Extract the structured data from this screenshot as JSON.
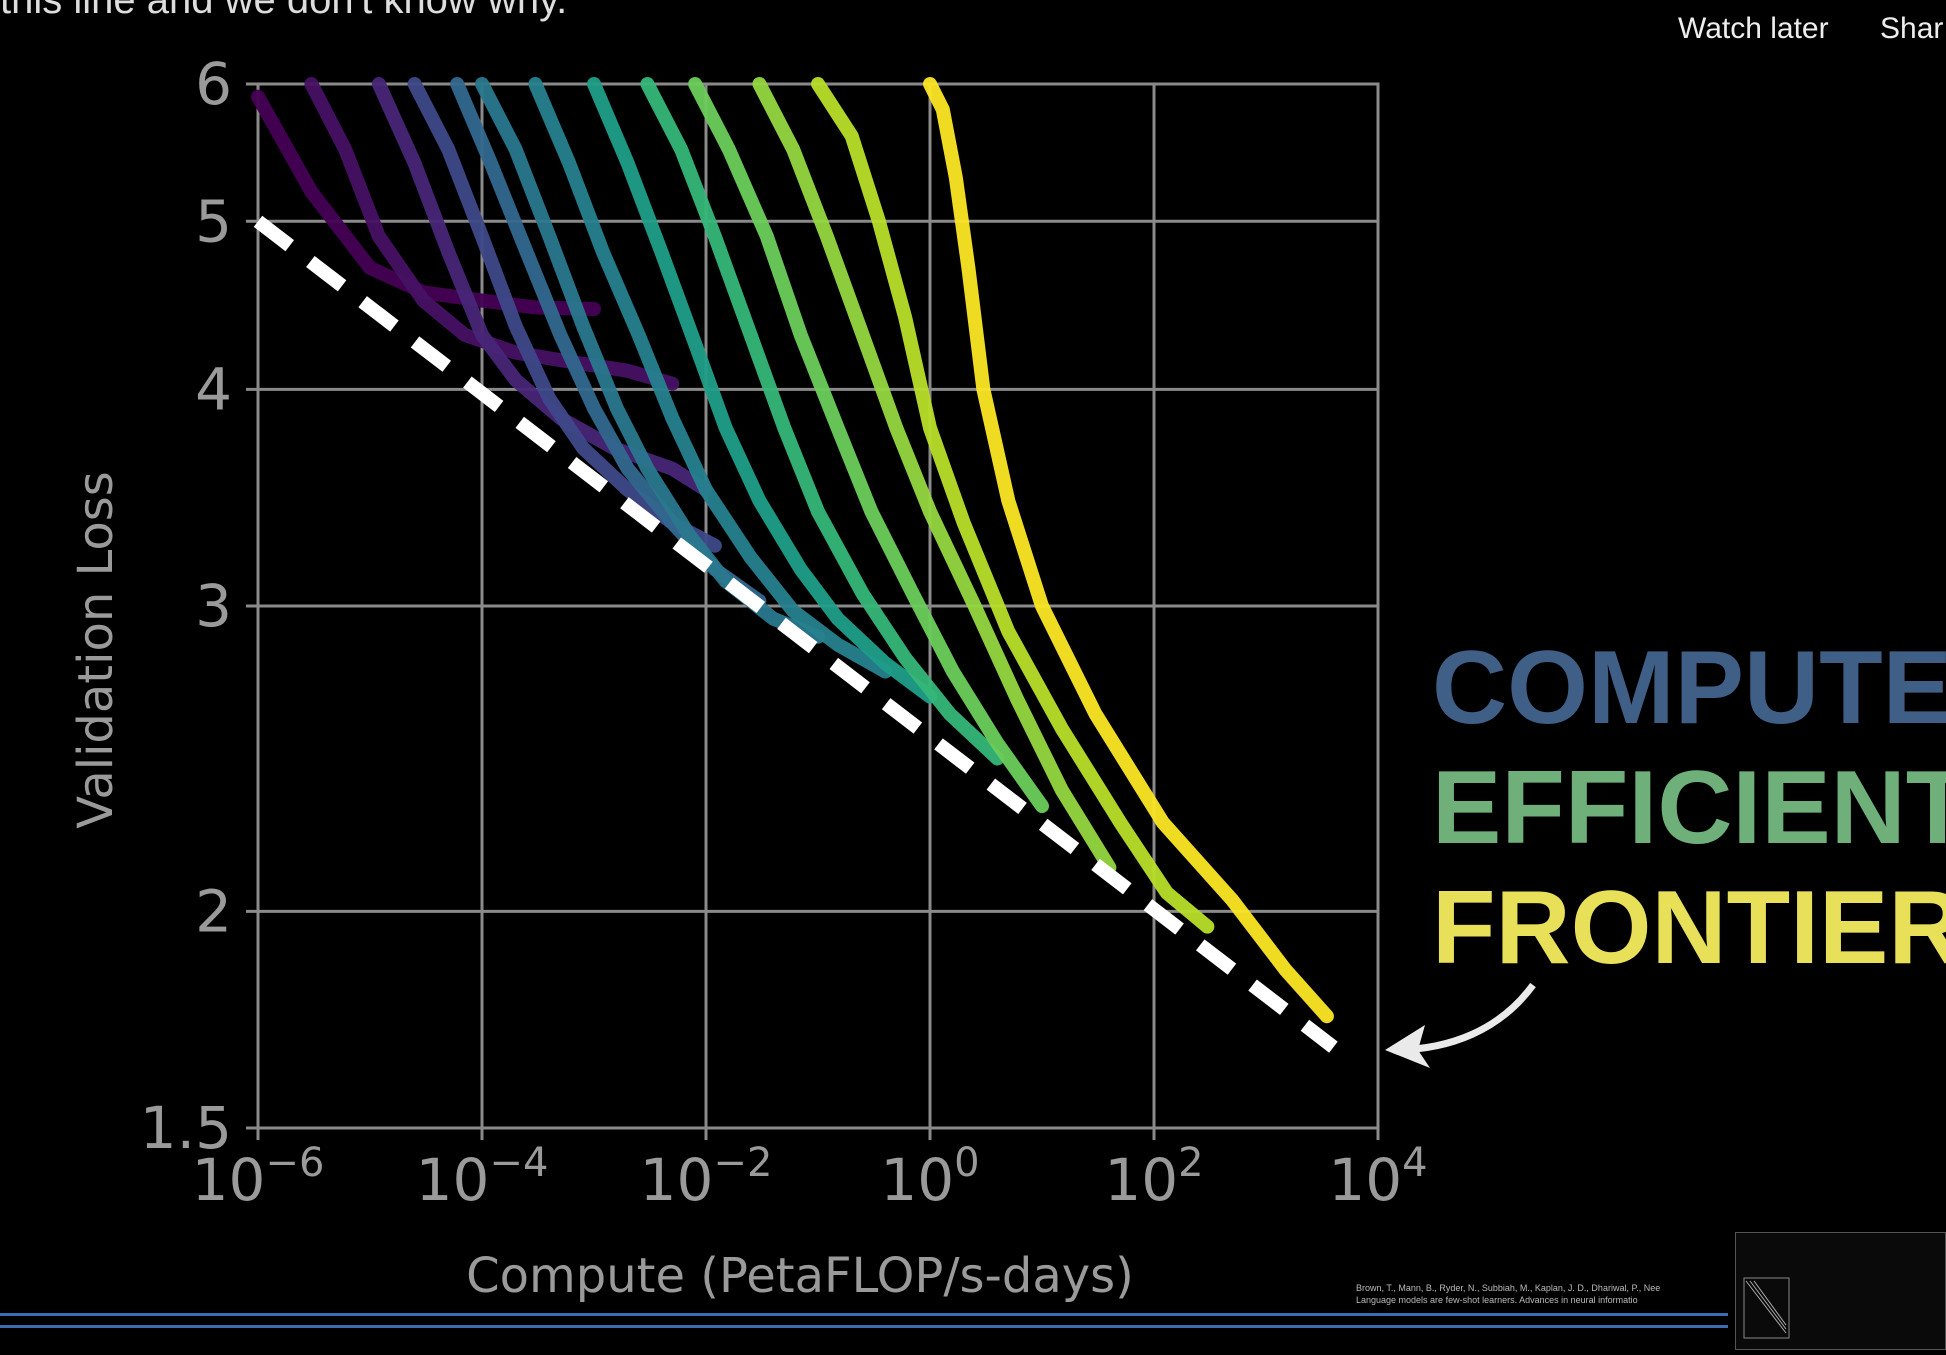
{
  "video": {
    "caption_text": "this line and we don't know why.",
    "watch_later_label": "Watch later",
    "share_label": "Shar"
  },
  "annotation": {
    "line1": "COMPUTE",
    "line2": "EFFICIENT",
    "line3": "FRONTIER",
    "colors": {
      "line1": "#3f5f86",
      "line2": "#6fb07a",
      "line3": "#e9e05a"
    }
  },
  "citation": {
    "line1": "Brown, T., Mann, B., Ryder, N., Subbiah, M., Kaplan, J. D., Dhariwal, P., Nee",
    "line2": "Language models are few-shot learners. Advances in neural informatio"
  },
  "chart_data": {
    "type": "line",
    "xlabel": "Compute (PetaFLOP/s-days)",
    "ylabel": "Validation Loss",
    "x_scale": "log",
    "y_scale": "log",
    "xlim": [
      1e-06,
      10000
    ],
    "ylim": [
      1.5,
      6
    ],
    "x_ticks": [
      {
        "base": "10",
        "exp": "−6",
        "value": 1e-06
      },
      {
        "base": "10",
        "exp": "−4",
        "value": 0.0001
      },
      {
        "base": "10",
        "exp": "−2",
        "value": 0.01
      },
      {
        "base": "10",
        "exp": "0",
        "value": 1
      },
      {
        "base": "10",
        "exp": "2",
        "value": 100
      },
      {
        "base": "10",
        "exp": "4",
        "value": 10000
      }
    ],
    "y_ticks": [
      {
        "label": "1.5",
        "value": 1.5
      },
      {
        "label": "2",
        "value": 2
      },
      {
        "label": "3",
        "value": 3
      },
      {
        "label": "4",
        "value": 4
      },
      {
        "label": "5",
        "value": 5
      },
      {
        "label": "6",
        "value": 6
      }
    ],
    "grid": true,
    "frontier": {
      "x": [
        1e-06,
        4000
      ],
      "y": [
        5.0,
        1.67
      ],
      "color": "#ffffff",
      "style": "dashed"
    },
    "series": [
      {
        "color": "#440154",
        "x": [
          1e-06,
          3e-06,
          1e-05,
          3e-05,
          0.0001,
          0.0003,
          0.001
        ],
        "y": [
          5.9,
          5.2,
          4.7,
          4.55,
          4.5,
          4.46,
          4.45
        ]
      },
      {
        "color": "#471164",
        "x": [
          3e-06,
          6e-06,
          1.2e-05,
          3e-05,
          7e-05,
          0.0002,
          0.0006,
          0.002,
          0.005
        ],
        "y": [
          6.0,
          5.5,
          4.9,
          4.5,
          4.3,
          4.2,
          4.15,
          4.1,
          4.03
        ]
      },
      {
        "color": "#482677",
        "x": [
          1.2e-05,
          2.5e-05,
          5e-05,
          0.0001,
          0.0002,
          0.0005,
          0.0015,
          0.005,
          0.01
        ],
        "y": [
          6.0,
          5.4,
          4.8,
          4.3,
          4.05,
          3.85,
          3.7,
          3.6,
          3.5
        ]
      },
      {
        "color": "#3e4989",
        "x": [
          2.5e-05,
          5e-05,
          0.0001,
          0.0002,
          0.0004,
          0.0008,
          0.002,
          0.005,
          0.012
        ],
        "y": [
          6.0,
          5.5,
          4.9,
          4.35,
          3.95,
          3.7,
          3.5,
          3.35,
          3.25
        ]
      },
      {
        "color": "#31688e",
        "x": [
          6e-05,
          0.00012,
          0.00025,
          0.0005,
          0.001,
          0.002,
          0.005,
          0.012,
          0.03
        ],
        "y": [
          6.0,
          5.4,
          4.8,
          4.3,
          3.9,
          3.6,
          3.35,
          3.15,
          3.02
        ]
      },
      {
        "color": "#2a788e",
        "x": [
          0.0001,
          0.0002,
          0.0004,
          0.0008,
          0.0016,
          0.003,
          0.007,
          0.015,
          0.04,
          0.1
        ],
        "y": [
          6.0,
          5.5,
          4.9,
          4.35,
          3.9,
          3.6,
          3.3,
          3.1,
          2.95,
          2.88
        ]
      },
      {
        "color": "#26828e",
        "x": [
          0.0003,
          0.0006,
          0.0012,
          0.0025,
          0.005,
          0.01,
          0.025,
          0.06,
          0.15,
          0.4
        ],
        "y": [
          6.0,
          5.4,
          4.8,
          4.3,
          3.85,
          3.5,
          3.2,
          2.98,
          2.85,
          2.75
        ]
      },
      {
        "color": "#1f9e89",
        "x": [
          0.001,
          0.002,
          0.004,
          0.008,
          0.015,
          0.03,
          0.07,
          0.15,
          0.4,
          1.0
        ],
        "y": [
          6.0,
          5.4,
          4.8,
          4.25,
          3.8,
          3.45,
          3.15,
          2.95,
          2.78,
          2.66
        ]
      },
      {
        "color": "#35b779",
        "x": [
          0.003,
          0.006,
          0.012,
          0.025,
          0.05,
          0.1,
          0.25,
          0.6,
          1.5,
          4.0
        ],
        "y": [
          6.0,
          5.5,
          4.9,
          4.3,
          3.8,
          3.4,
          3.05,
          2.8,
          2.6,
          2.45
        ]
      },
      {
        "color": "#6ccd5a",
        "x": [
          0.008,
          0.016,
          0.035,
          0.07,
          0.15,
          0.3,
          0.7,
          1.6,
          4.0,
          10.0
        ],
        "y": [
          6.0,
          5.5,
          4.9,
          4.3,
          3.8,
          3.4,
          3.05,
          2.75,
          2.5,
          2.3
        ]
      },
      {
        "color": "#95d840",
        "x": [
          0.03,
          0.06,
          0.12,
          0.25,
          0.5,
          1.0,
          2.5,
          6.0,
          15.0,
          40.0
        ],
        "y": [
          6.0,
          5.5,
          4.9,
          4.3,
          3.8,
          3.4,
          3.0,
          2.65,
          2.35,
          2.12
        ]
      },
      {
        "color": "#b8de29",
        "x": [
          0.1,
          0.2,
          0.35,
          0.6,
          1.0,
          2.0,
          5.0,
          15.0,
          50.0,
          130.0,
          300.0
        ],
        "y": [
          6.0,
          5.6,
          5.0,
          4.4,
          3.8,
          3.35,
          2.9,
          2.55,
          2.25,
          2.05,
          1.96
        ]
      },
      {
        "color": "#fde725",
        "x": [
          1.0,
          1.3,
          1.7,
          2.2,
          3.0,
          5.0,
          10.0,
          30.0,
          120.0,
          500.0,
          1500.0,
          3500.0
        ],
        "y": [
          6.0,
          5.8,
          5.3,
          4.7,
          4.0,
          3.45,
          3.0,
          2.6,
          2.25,
          2.03,
          1.85,
          1.74
        ]
      }
    ]
  }
}
